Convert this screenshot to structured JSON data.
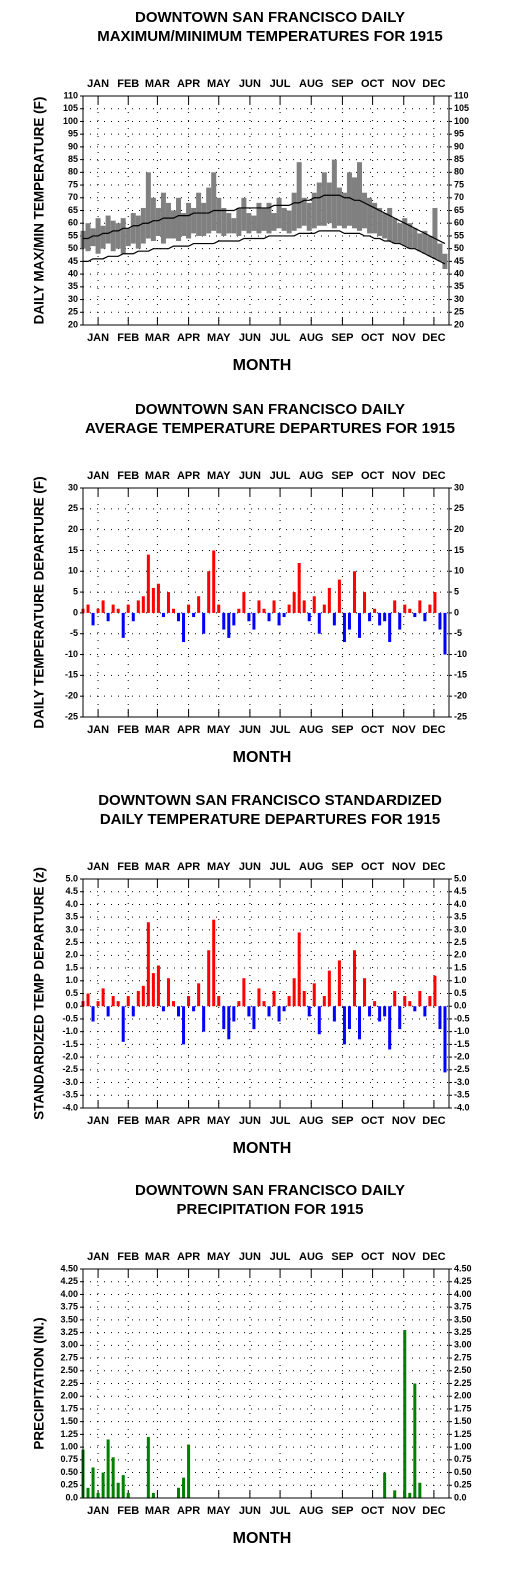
{
  "chart_data": [
    {
      "type": "range",
      "title": [
        "DOWNTOWN SAN FRANCISCO DAILY",
        "MAXIMUM/MINIMUM TEMPERATURES FOR 1915"
      ],
      "xlabel": "MONTH",
      "ylabel": "DAILY MAX/MIN TEMPERATURE (F)",
      "xlim": [
        1,
        365
      ],
      "xticks": [
        {
          "value": 16,
          "label": "JAN"
        },
        {
          "value": 46,
          "label": "FEB"
        },
        {
          "value": 75,
          "label": "MAR"
        },
        {
          "value": 106,
          "label": "APR"
        },
        {
          "value": 136,
          "label": "MAY"
        },
        {
          "value": 167,
          "label": "JUN"
        },
        {
          "value": 197,
          "label": "JUL"
        },
        {
          "value": 228,
          "label": "AUG"
        },
        {
          "value": 259,
          "label": "SEP"
        },
        {
          "value": 289,
          "label": "OCT"
        },
        {
          "value": 320,
          "label": "NOV"
        },
        {
          "value": 350,
          "label": "DEC"
        }
      ],
      "ylim": [
        20,
        110
      ],
      "yticks": [
        20,
        25,
        30,
        35,
        40,
        45,
        50,
        55,
        60,
        65,
        70,
        75,
        80,
        85,
        90,
        95,
        100,
        105,
        110
      ],
      "grid": true,
      "x": [
        1,
        6,
        11,
        16,
        21,
        26,
        31,
        36,
        41,
        46,
        51,
        56,
        61,
        66,
        71,
        76,
        81,
        86,
        91,
        96,
        101,
        106,
        111,
        116,
        121,
        126,
        131,
        136,
        141,
        146,
        151,
        156,
        161,
        166,
        171,
        176,
        181,
        186,
        191,
        196,
        201,
        206,
        211,
        216,
        221,
        226,
        231,
        236,
        241,
        246,
        251,
        256,
        261,
        266,
        271,
        276,
        281,
        286,
        291,
        296,
        301,
        306,
        311,
        316,
        321,
        326,
        331,
        336,
        341,
        346,
        351,
        356,
        361
      ],
      "range": {
        "color": "#808080",
        "high": [
          57,
          60,
          58,
          62,
          59,
          63,
          61,
          60,
          62,
          58,
          64,
          63,
          66,
          80,
          70,
          66,
          72,
          68,
          65,
          70,
          64,
          68,
          66,
          72,
          68,
          74,
          80,
          70,
          66,
          64,
          62,
          66,
          70,
          64,
          63,
          68,
          66,
          68,
          64,
          70,
          66,
          65,
          72,
          84,
          70,
          68,
          72,
          76,
          80,
          76,
          85,
          74,
          72,
          80,
          78,
          84,
          72,
          70,
          68,
          66,
          64,
          66,
          62,
          60,
          62,
          60,
          58,
          56,
          57,
          55,
          66,
          52,
          48
        ],
        "low": [
          50,
          49,
          51,
          48,
          50,
          52,
          49,
          50,
          48,
          51,
          52,
          50,
          52,
          54,
          53,
          55,
          52,
          54,
          54,
          53,
          55,
          54,
          56,
          55,
          55,
          56,
          57,
          56,
          55,
          56,
          56,
          55,
          57,
          56,
          57,
          56,
          57,
          56,
          57,
          58,
          57,
          56,
          57,
          58,
          59,
          57,
          58,
          59,
          59,
          60,
          58,
          59,
          58,
          59,
          58,
          57,
          58,
          56,
          56,
          55,
          54,
          53,
          52,
          52,
          51,
          50,
          50,
          49,
          48,
          47,
          46,
          45,
          42
        ]
      },
      "series": [
        {
          "color": "#000000",
          "values": [
            54,
            54,
            55,
            55,
            56,
            56,
            57,
            57,
            58,
            58,
            59,
            59,
            60,
            60,
            61,
            61,
            62,
            62,
            62,
            63,
            63,
            63,
            64,
            64,
            64,
            64,
            65,
            65,
            65,
            65,
            65,
            66,
            66,
            66,
            66,
            66,
            66,
            66,
            67,
            67,
            67,
            67,
            68,
            68,
            69,
            69,
            70,
            70,
            71,
            71,
            71,
            71,
            70,
            70,
            69,
            69,
            68,
            67,
            66,
            65,
            64,
            63,
            62,
            61,
            60,
            59,
            58,
            57,
            56,
            55,
            54,
            53,
            52
          ]
        },
        {
          "color": "#000000",
          "values": [
            45,
            45,
            46,
            46,
            46,
            47,
            47,
            47,
            48,
            48,
            48,
            49,
            49,
            49,
            50,
            50,
            50,
            50,
            51,
            51,
            51,
            51,
            52,
            52,
            52,
            52,
            52,
            53,
            53,
            53,
            53,
            53,
            54,
            54,
            54,
            54,
            54,
            55,
            55,
            55,
            55,
            55,
            55,
            56,
            56,
            56,
            56,
            57,
            57,
            57,
            57,
            57,
            56,
            56,
            56,
            56,
            55,
            55,
            54,
            54,
            53,
            53,
            52,
            52,
            51,
            50,
            50,
            49,
            48,
            47,
            46,
            45,
            44
          ]
        }
      ]
    },
    {
      "type": "bar",
      "title": [
        "DOWNTOWN SAN FRANCISCO DAILY",
        "AVERAGE TEMPERATURE DEPARTURES FOR 1915"
      ],
      "xlabel": "MONTH",
      "ylabel": "DAILY TEMPERATURE DEPARTURE (F)",
      "xlim": [
        1,
        365
      ],
      "xticks": [
        {
          "value": 16,
          "label": "JAN"
        },
        {
          "value": 46,
          "label": "FEB"
        },
        {
          "value": 75,
          "label": "MAR"
        },
        {
          "value": 106,
          "label": "APR"
        },
        {
          "value": 136,
          "label": "MAY"
        },
        {
          "value": 167,
          "label": "JUN"
        },
        {
          "value": 197,
          "label": "JUL"
        },
        {
          "value": 228,
          "label": "AUG"
        },
        {
          "value": 259,
          "label": "SEP"
        },
        {
          "value": 289,
          "label": "OCT"
        },
        {
          "value": 320,
          "label": "NOV"
        },
        {
          "value": 350,
          "label": "DEC"
        }
      ],
      "ylim": [
        -25,
        30
      ],
      "yticks": [
        -25,
        -20,
        -15,
        -10,
        -5,
        0,
        5,
        10,
        15,
        20,
        25,
        30
      ],
      "grid": true,
      "pos_color": "#ff0000",
      "neg_color": "#0000ff",
      "x": [
        1,
        6,
        11,
        16,
        21,
        26,
        31,
        36,
        41,
        46,
        51,
        56,
        61,
        66,
        71,
        76,
        81,
        86,
        91,
        96,
        101,
        106,
        111,
        116,
        121,
        126,
        131,
        136,
        141,
        146,
        151,
        156,
        161,
        166,
        171,
        176,
        181,
        186,
        191,
        196,
        201,
        206,
        211,
        216,
        221,
        226,
        231,
        236,
        241,
        246,
        251,
        256,
        261,
        266,
        271,
        276,
        281,
        286,
        291,
        296,
        301,
        306,
        311,
        316,
        321,
        326,
        331,
        336,
        341,
        346,
        351,
        356,
        361
      ],
      "values": [
        1,
        2,
        -3,
        1,
        3,
        -2,
        2,
        1,
        -6,
        2,
        -2,
        3,
        4,
        14,
        6,
        7,
        -1,
        5,
        1,
        -2,
        -7,
        2,
        -1,
        4,
        -5,
        10,
        15,
        2,
        -4,
        -6,
        -3,
        1,
        5,
        -2,
        -4,
        3,
        1,
        -2,
        3,
        -3,
        -1,
        2,
        5,
        12,
        3,
        -2,
        4,
        -5,
        2,
        6,
        -3,
        8,
        -7,
        -4,
        10,
        -6,
        5,
        -2,
        1,
        -3,
        -2,
        -7,
        3,
        -4,
        2,
        1,
        -1,
        3,
        -2,
        2,
        5,
        -4,
        -10
      ]
    },
    {
      "type": "bar",
      "title": [
        "DOWNTOWN SAN FRANCISCO STANDARDIZED",
        "DAILY TEMPERATURE DEPARTURES FOR 1915"
      ],
      "xlabel": "MONTH",
      "ylabel": "STANDARDIZED TEMP DEPARTURE (z)",
      "xlim": [
        1,
        365
      ],
      "xticks": [
        {
          "value": 16,
          "label": "JAN"
        },
        {
          "value": 46,
          "label": "FEB"
        },
        {
          "value": 75,
          "label": "MAR"
        },
        {
          "value": 106,
          "label": "APR"
        },
        {
          "value": 136,
          "label": "MAY"
        },
        {
          "value": 167,
          "label": "JUN"
        },
        {
          "value": 197,
          "label": "JUL"
        },
        {
          "value": 228,
          "label": "AUG"
        },
        {
          "value": 259,
          "label": "SEP"
        },
        {
          "value": 289,
          "label": "OCT"
        },
        {
          "value": 320,
          "label": "NOV"
        },
        {
          "value": 350,
          "label": "DEC"
        }
      ],
      "ylim": [
        -4,
        5
      ],
      "yticks": [
        {
          "value": -4,
          "label": "-4.0"
        },
        -3.5,
        {
          "value": -3,
          "label": "-3.0"
        },
        -2.5,
        {
          "value": -2,
          "label": "-2.0"
        },
        -1.5,
        {
          "value": -1,
          "label": "-1.0"
        },
        -0.5,
        {
          "value": 0,
          "label": "0.0"
        },
        0.5,
        {
          "value": 1,
          "label": "1.0"
        },
        1.5,
        {
          "value": 2,
          "label": "2.0"
        },
        2.5,
        {
          "value": 3,
          "label": "3.0"
        },
        3.5,
        {
          "value": 4,
          "label": "4.0"
        },
        4.5,
        {
          "value": 5,
          "label": "5.0"
        }
      ],
      "grid": true,
      "pos_color": "#ff0000",
      "neg_color": "#0000ff",
      "x": [
        1,
        6,
        11,
        16,
        21,
        26,
        31,
        36,
        41,
        46,
        51,
        56,
        61,
        66,
        71,
        76,
        81,
        86,
        91,
        96,
        101,
        106,
        111,
        116,
        121,
        126,
        131,
        136,
        141,
        146,
        151,
        156,
        161,
        166,
        171,
        176,
        181,
        186,
        191,
        196,
        201,
        206,
        211,
        216,
        221,
        226,
        231,
        236,
        241,
        246,
        251,
        256,
        261,
        266,
        271,
        276,
        281,
        286,
        291,
        296,
        301,
        306,
        311,
        316,
        321,
        326,
        331,
        336,
        341,
        346,
        351,
        356,
        361
      ],
      "values": [
        0.2,
        0.5,
        -0.6,
        0.2,
        0.7,
        -0.4,
        0.4,
        0.2,
        -1.4,
        0.4,
        -0.4,
        0.6,
        0.8,
        3.3,
        1.3,
        1.6,
        -0.2,
        1.1,
        0.2,
        -0.4,
        -1.5,
        0.4,
        -0.2,
        0.9,
        -1.0,
        2.2,
        3.4,
        0.4,
        -0.9,
        -1.3,
        -0.6,
        0.2,
        1.1,
        -0.4,
        -0.9,
        0.7,
        0.2,
        -0.4,
        0.6,
        -0.6,
        -0.2,
        0.4,
        1.1,
        2.9,
        0.6,
        -0.4,
        0.9,
        -1.1,
        0.4,
        1.4,
        -0.6,
        1.8,
        -1.5,
        -0.9,
        2.2,
        -1.3,
        1.1,
        -0.4,
        0.2,
        -0.6,
        -0.4,
        -1.7,
        0.6,
        -0.9,
        0.4,
        0.2,
        -0.2,
        0.6,
        -0.4,
        0.4,
        1.2,
        -0.9,
        -2.6
      ]
    },
    {
      "type": "bar",
      "title": [
        "DOWNTOWN SAN FRANCISCO DAILY",
        "PRECIPITATION FOR 1915"
      ],
      "xlabel": "MONTH",
      "ylabel": "PRECIPITATION (IN.)",
      "xlim": [
        1,
        365
      ],
      "xticks": [
        {
          "value": 16,
          "label": "JAN"
        },
        {
          "value": 46,
          "label": "FEB"
        },
        {
          "value": 75,
          "label": "MAR"
        },
        {
          "value": 106,
          "label": "APR"
        },
        {
          "value": 136,
          "label": "MAY"
        },
        {
          "value": 167,
          "label": "JUN"
        },
        {
          "value": 197,
          "label": "JUL"
        },
        {
          "value": 228,
          "label": "AUG"
        },
        {
          "value": 259,
          "label": "SEP"
        },
        {
          "value": 289,
          "label": "OCT"
        },
        {
          "value": 320,
          "label": "NOV"
        },
        {
          "value": 350,
          "label": "DEC"
        }
      ],
      "ylim": [
        0,
        4.5
      ],
      "yticks": [
        {
          "value": 0,
          "label": "0.0"
        },
        0.25,
        {
          "value": 0.5,
          "label": "0.50"
        },
        0.75,
        {
          "value": 1,
          "label": "1.00"
        },
        1.25,
        {
          "value": 1.5,
          "label": "1.50"
        },
        1.75,
        {
          "value": 2,
          "label": "2.00"
        },
        2.25,
        {
          "value": 2.5,
          "label": "2.50"
        },
        2.75,
        {
          "value": 3,
          "label": "3.00"
        },
        3.25,
        {
          "value": 3.5,
          "label": "3.50"
        },
        3.75,
        {
          "value": 4,
          "label": "4.00"
        },
        4.25,
        {
          "value": 4.5,
          "label": "4.50"
        }
      ],
      "grid": true,
      "pos_color": "#008000",
      "neg_color": "#008000",
      "x": [
        1,
        6,
        11,
        16,
        21,
        26,
        31,
        36,
        41,
        46,
        51,
        56,
        61,
        66,
        71,
        76,
        81,
        86,
        91,
        96,
        101,
        106,
        111,
        116,
        121,
        126,
        131,
        136,
        141,
        146,
        151,
        156,
        161,
        166,
        171,
        176,
        181,
        186,
        191,
        196,
        201,
        206,
        211,
        216,
        221,
        226,
        231,
        236,
        241,
        246,
        251,
        256,
        261,
        266,
        271,
        276,
        281,
        286,
        291,
        296,
        301,
        306,
        311,
        316,
        321,
        326,
        331,
        336,
        341,
        346,
        351,
        356,
        361
      ],
      "values": [
        0.95,
        0.2,
        0.6,
        0.1,
        0.5,
        1.15,
        0.8,
        0.3,
        0.45,
        0.1,
        0,
        0,
        0,
        1.2,
        0.1,
        0,
        0,
        0,
        0,
        0.2,
        0.4,
        1.05,
        0,
        0,
        0,
        0,
        0,
        0,
        0,
        0,
        0,
        0,
        0,
        0,
        0,
        0,
        0,
        0,
        0,
        0,
        0,
        0,
        0,
        0,
        0,
        0,
        0,
        0,
        0,
        0,
        0,
        0,
        0,
        0,
        0,
        0,
        0,
        0,
        0,
        0,
        0.5,
        0,
        0.15,
        0,
        3.3,
        0.1,
        2.25,
        0.3,
        0,
        0,
        0,
        0,
        0
      ]
    }
  ]
}
